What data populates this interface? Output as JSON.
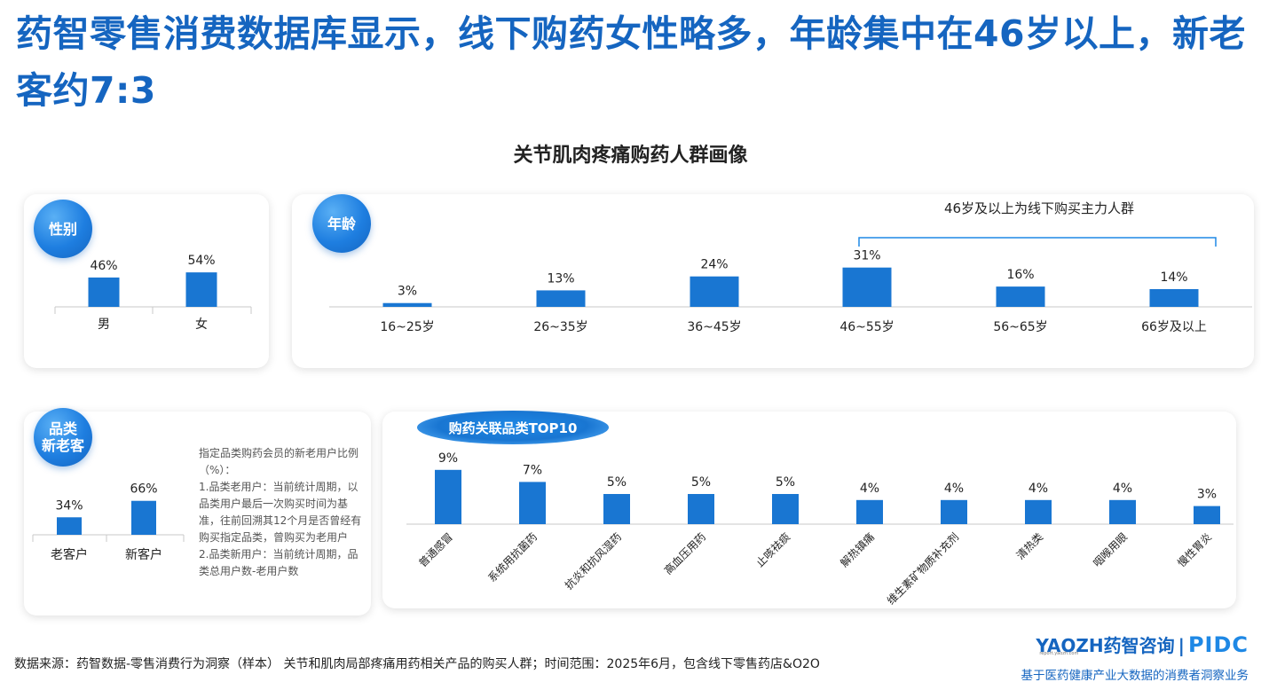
{
  "title": "药智零售消费数据库显示，线下购药女性略多，年龄集中在46岁以上，新老客约7:3",
  "subtitle": "关节肌肉疼痛购药人群画像",
  "gender": {
    "badge": "性别"
  },
  "age": {
    "badge": "年龄",
    "annotation": "46岁及以上为线下购买主力人群"
  },
  "customer": {
    "badge": "品类\n新老客",
    "note": "指定品类购药会员的新老用户比例（%）：\n1.品类老用户：当前统计周期，以品类用户最后一次购买时间为基准，往前回溯其12个月是否曾经有购买指定品类，曾购买为老用户\n2.品类新用户：当前统计周期，品类总用户数-老用户数"
  },
  "related": {
    "badge": "购药关联品类TOP10"
  },
  "footer": {
    "source": "数据来源：药智数据-零售消费行为洞察（样本） 关节和肌肉局部疼痛用药相关产品的购买人群；时间范围：2025年6月，包含线下零售药店&O2O",
    "brand_en": "YAOZH",
    "brand_cn": "药智咨询",
    "brand_sep": "|",
    "brand_pidc": "PIDC",
    "brand_url": "report.yaozh.com",
    "tagline": "基于医药健康产业大数据的消费者洞察业务"
  },
  "colors": {
    "accent": "#1565c0",
    "bar": "#1976d2"
  },
  "chart_data": [
    {
      "type": "bar",
      "unit": "%",
      "categories": [
        "男",
        "女"
      ],
      "values": [
        46,
        54
      ]
    },
    {
      "type": "bar",
      "unit": "%",
      "categories": [
        "16~25岁",
        "26~35岁",
        "36~45岁",
        "46~55岁",
        "56~65岁",
        "66岁及以上"
      ],
      "values": [
        3,
        13,
        24,
        31,
        16,
        14
      ]
    },
    {
      "type": "bar",
      "unit": "%",
      "categories": [
        "老客户",
        "新客户"
      ],
      "values": [
        34,
        66
      ]
    },
    {
      "type": "bar",
      "unit": "%",
      "categories": [
        "普通感冒",
        "系统用抗菌药",
        "抗炎和抗风湿药",
        "高血压用药",
        "止咳祛痰",
        "解热镇痛",
        "维生素矿物质补充剂",
        "清热类",
        "咽喉用眼",
        "慢性胃炎"
      ],
      "values": [
        9,
        7,
        5,
        5,
        5,
        4,
        4,
        4,
        4,
        3
      ]
    }
  ]
}
